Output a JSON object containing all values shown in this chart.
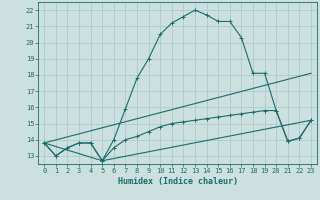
{
  "xlabel": "Humidex (Indice chaleur)",
  "bg_color": "#cce0e0",
  "grid_color": "#aacccc",
  "line_color": "#1a6b6b",
  "ylim": [
    12.5,
    22.5
  ],
  "xlim": [
    -0.5,
    23.5
  ],
  "yticks": [
    13,
    14,
    15,
    16,
    17,
    18,
    19,
    20,
    21,
    22
  ],
  "xticks": [
    0,
    1,
    2,
    3,
    4,
    5,
    6,
    7,
    8,
    9,
    10,
    11,
    12,
    13,
    14,
    15,
    16,
    17,
    18,
    19,
    20,
    21,
    22,
    23
  ],
  "lines": [
    {
      "x": [
        0,
        1,
        2,
        3,
        4,
        5,
        6,
        7,
        8,
        9,
        10,
        11,
        12,
        13,
        14,
        15,
        16,
        17,
        18,
        19,
        20,
        21,
        22,
        23
      ],
      "y": [
        13.8,
        13.0,
        13.5,
        13.8,
        13.8,
        12.7,
        14.0,
        15.9,
        17.8,
        19.0,
        20.5,
        21.2,
        21.6,
        22.0,
        21.7,
        21.3,
        21.3,
        20.3,
        18.1,
        18.1,
        15.8,
        13.9,
        14.1,
        15.2
      ],
      "marker": true
    },
    {
      "x": [
        0,
        23
      ],
      "y": [
        13.8,
        18.1
      ],
      "marker": false
    },
    {
      "x": [
        0,
        1,
        2,
        3,
        4,
        5,
        6,
        7,
        8,
        9,
        10,
        11,
        12,
        13,
        14,
        15,
        16,
        17,
        18,
        19,
        20,
        21,
        22,
        23
      ],
      "y": [
        13.8,
        13.0,
        13.5,
        13.8,
        13.8,
        12.7,
        13.5,
        14.0,
        14.2,
        14.5,
        14.8,
        15.0,
        15.1,
        15.2,
        15.3,
        15.4,
        15.5,
        15.6,
        15.7,
        15.8,
        15.8,
        13.9,
        14.1,
        15.2
      ],
      "marker": true
    },
    {
      "x": [
        0,
        5,
        23
      ],
      "y": [
        13.8,
        12.7,
        15.2
      ],
      "marker": false
    }
  ]
}
